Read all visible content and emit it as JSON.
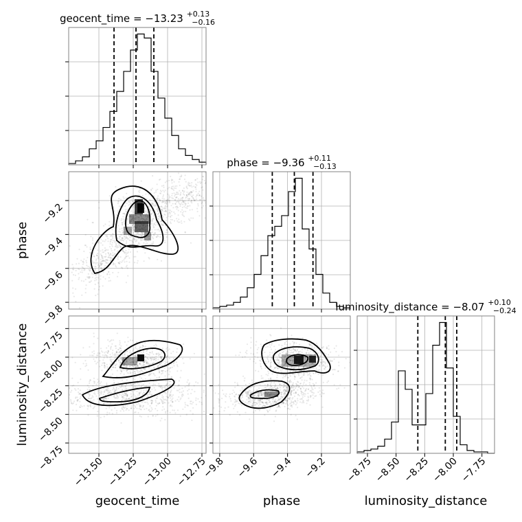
{
  "chart_data": {
    "type": "corner",
    "parameters": [
      "geocent_time",
      "phase",
      "luminosity_distance"
    ],
    "titles": [
      {
        "name": "geocent_time",
        "median": "−13.23",
        "plus": "+0.13",
        "minus": "−0.16"
      },
      {
        "name": "phase",
        "median": "−9.36",
        "plus": "+0.11",
        "minus": "−0.13"
      },
      {
        "name": "luminosity_distance",
        "median": "−8.07",
        "plus": "+0.10",
        "minus": "−0.24"
      }
    ],
    "ranges": {
      "geocent_time": [
        -13.72,
        -12.72
      ],
      "phase": [
        -9.84,
        -9.03
      ],
      "luminosity_distance": [
        -8.84,
        -7.64
      ]
    },
    "ticks": {
      "geocent_time": [
        -13.5,
        -13.25,
        -13.0,
        -12.75
      ],
      "phase": [
        -9.8,
        -9.6,
        -9.4,
        -9.2
      ],
      "luminosity_distance": [
        -8.75,
        -8.5,
        -8.25,
        -8.0,
        -7.75
      ]
    },
    "tick_labels": {
      "geocent_time": [
        "−13.50",
        "−13.25",
        "−13.00",
        "−12.75"
      ],
      "phase": [
        "−9.8",
        "−9.6",
        "−9.4",
        "−9.2"
      ],
      "luminosity_distance": [
        "−8.75",
        "−8.50",
        "−8.25",
        "−8.00",
        "−7.75"
      ]
    },
    "histograms": {
      "geocent_time": {
        "edges_start": -13.72,
        "bin_width": 0.05,
        "counts": [
          1,
          3,
          6,
          12,
          18,
          28,
          40,
          55,
          70,
          86,
          98,
          95,
          70,
          50,
          35,
          22,
          12,
          7,
          4,
          2
        ],
        "quantiles": [
          -13.39,
          -13.23,
          -13.1
        ]
      },
      "phase": {
        "edges_start": -9.84,
        "bin_width": 0.0405,
        "counts": [
          1,
          2,
          3,
          5,
          9,
          16,
          26,
          40,
          55,
          62,
          70,
          88,
          98,
          60,
          45,
          26,
          12,
          5,
          2,
          1
        ],
        "quantiles": [
          -9.49,
          -9.36,
          -9.25
        ]
      },
      "luminosity_distance": {
        "edges_start": -8.84,
        "bin_width": 0.06,
        "counts": [
          1,
          2,
          3,
          5,
          10,
          22,
          58,
          45,
          20,
          20,
          42,
          76,
          92,
          60,
          26,
          6,
          2,
          1,
          1,
          0
        ],
        "quantiles": [
          -8.31,
          -8.07,
          -7.97
        ]
      }
    },
    "grid": true,
    "xlabels": [
      "geocent_time",
      "phase",
      "luminosity_distance"
    ],
    "ylabels": [
      "phase",
      "luminosity_distance"
    ]
  }
}
